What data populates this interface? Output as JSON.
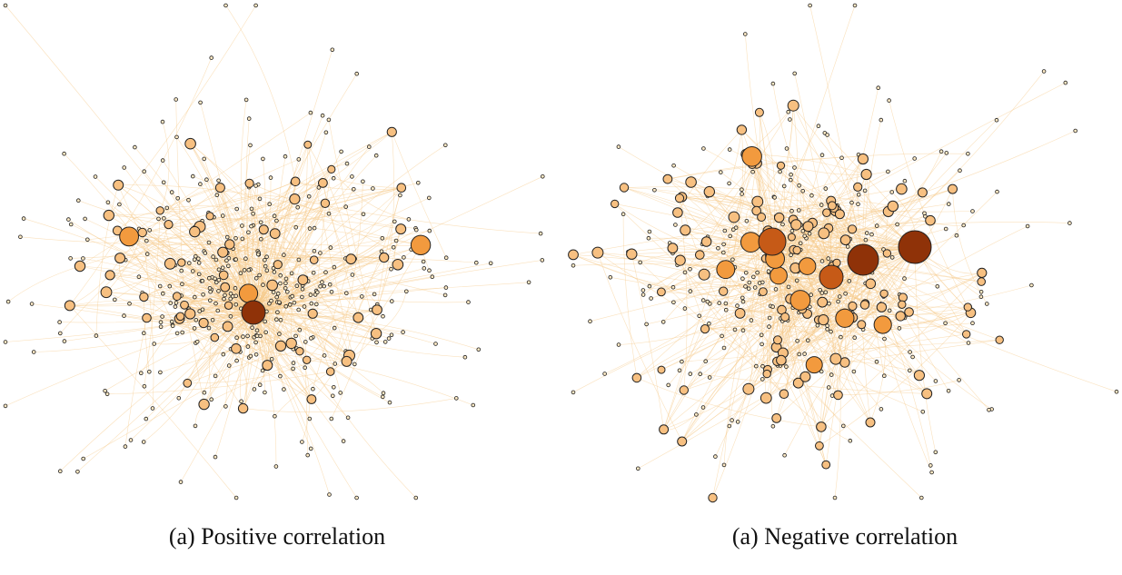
{
  "figures": [
    {
      "id": "positive",
      "caption": "(a) Positive correlation",
      "small_nodes": 420,
      "medium_nodes": 70,
      "large_nodes": 3,
      "hub_nodes": 1
    },
    {
      "id": "negative",
      "caption": "(a) Negative correlation",
      "small_nodes": 300,
      "medium_nodes": 130,
      "large_nodes": 10,
      "hub_nodes": 4
    }
  ],
  "colors": {
    "edge": "#f5c987",
    "node_small": "#fde9c4",
    "node_medium": "#f7c081",
    "node_large": "#f29a3e",
    "node_hub": "#8f3208",
    "node_hub_alt": "#c65a17",
    "node_stroke": "#222222"
  }
}
